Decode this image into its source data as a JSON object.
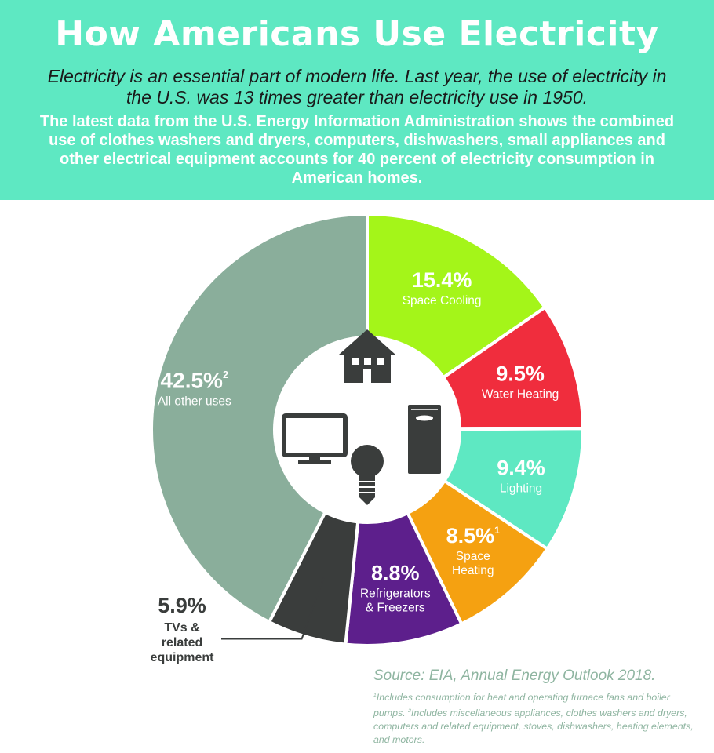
{
  "header": {
    "title": "How Americans Use Electricity",
    "intro": "Electricity is an essential part of modern life. Last year, the use of electricity in the U.S. was 13 times greater than electricity use in 1950.",
    "body": "The latest data from the U.S. Energy Information Administration shows the combined use of clothes washers and dryers, computers, dishwashers, small appliances and other electrical equipment accounts for 40 percent of electricity consumption in American homes."
  },
  "chart_data": {
    "type": "pie",
    "donut": true,
    "slices": [
      {
        "name": "Space Cooling",
        "value": 15.4,
        "label": "15.4%",
        "color": "#a4f519"
      },
      {
        "name": "Water Heating",
        "value": 9.5,
        "label": "9.5%",
        "color": "#f02d3d"
      },
      {
        "name": "Lighting",
        "value": 9.4,
        "label": "9.4%",
        "color": "#5ee8c2"
      },
      {
        "name": "Space Heating",
        "value": 8.5,
        "label": "8.5%",
        "footnote": "1",
        "color": "#f5a111"
      },
      {
        "name": "Refrigerators & Freezers",
        "value": 8.8,
        "label": "8.8%",
        "color": "#5d1f8c"
      },
      {
        "name": "TVs & related equipment",
        "value": 5.9,
        "label": "5.9%",
        "color": "#3a3d3c"
      },
      {
        "name": "All other uses",
        "value": 42.5,
        "label": "42.5%",
        "footnote": "2",
        "color": "#8aae9b"
      }
    ],
    "center_icons": [
      "house-icon",
      "water-heater-icon",
      "tv-icon",
      "lightbulb-icon"
    ]
  },
  "source": "Source: EIA, Annual Energy Outlook 2018.",
  "footnotes": {
    "n1_mark": "1",
    "n1": "Includes consumption for heat and operating furnace fans and boiler pumps.",
    "n2_mark": "2",
    "n2": "Includes miscellaneous appliances, clothes washers and dryers, computers and related equipment, stoves, dishwashers, heating elements, and motors."
  }
}
